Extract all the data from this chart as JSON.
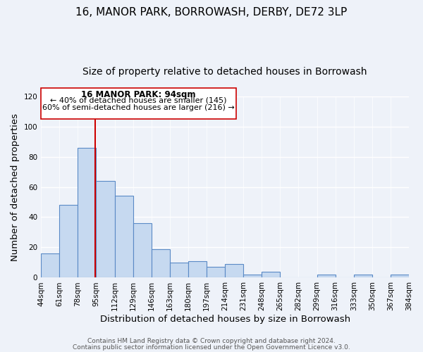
{
  "title": "16, MANOR PARK, BORROWASH, DERBY, DE72 3LP",
  "subtitle": "Size of property relative to detached houses in Borrowash",
  "xlabel": "Distribution of detached houses by size in Borrowash",
  "ylabel": "Number of detached properties",
  "bar_edges": [
    44,
    61,
    78,
    95,
    112,
    129,
    146,
    163,
    180,
    197,
    214,
    231,
    248,
    265,
    282,
    299,
    316,
    333,
    350,
    367,
    384
  ],
  "bar_heights": [
    16,
    48,
    86,
    64,
    54,
    36,
    19,
    10,
    11,
    7,
    9,
    2,
    4,
    0,
    0,
    2,
    0,
    2,
    0,
    2
  ],
  "bar_color": "#c6d9f0",
  "bar_edge_color": "#5a8ac6",
  "vline_x": 94,
  "vline_color": "#cc0000",
  "ylim": [
    0,
    120
  ],
  "yticks": [
    0,
    20,
    40,
    60,
    80,
    100,
    120
  ],
  "xtick_labels": [
    "44sqm",
    "61sqm",
    "78sqm",
    "95sqm",
    "112sqm",
    "129sqm",
    "146sqm",
    "163sqm",
    "180sqm",
    "197sqm",
    "214sqm",
    "231sqm",
    "248sqm",
    "265sqm",
    "282sqm",
    "299sqm",
    "316sqm",
    "333sqm",
    "350sqm",
    "367sqm",
    "384sqm"
  ],
  "annotation_title": "16 MANOR PARK: 94sqm",
  "annotation_line1": "← 40% of detached houses are smaller (145)",
  "annotation_line2": "60% of semi-detached houses are larger (216) →",
  "footer1": "Contains HM Land Registry data © Crown copyright and database right 2024.",
  "footer2": "Contains public sector information licensed under the Open Government Licence v3.0.",
  "background_color": "#eef2f9",
  "grid_color": "#ffffff",
  "title_fontsize": 11,
  "subtitle_fontsize": 10,
  "axis_label_fontsize": 9.5,
  "tick_fontsize": 7.5,
  "footer_fontsize": 6.5
}
